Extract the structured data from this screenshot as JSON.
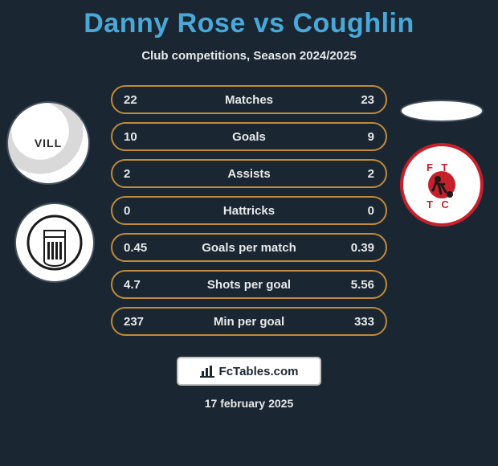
{
  "title": {
    "p1": "Danny Rose",
    "vs": "vs",
    "p2": "Coughlin",
    "color": "#4aa8d8",
    "fontsize": 34
  },
  "subtitle": "Club competitions, Season 2024/2025",
  "row_style": {
    "border_color": "#c08a3a",
    "text_color": "#e8e8e8",
    "radius": 18
  },
  "rows": [
    {
      "label": "Matches",
      "left": "22",
      "right": "23"
    },
    {
      "label": "Goals",
      "left": "10",
      "right": "9"
    },
    {
      "label": "Assists",
      "left": "2",
      "right": "2"
    },
    {
      "label": "Hattricks",
      "left": "0",
      "right": "0"
    },
    {
      "label": "Goals per match",
      "left": "0.45",
      "right": "0.39"
    },
    {
      "label": "Shots per goal",
      "left": "4.7",
      "right": "5.56"
    },
    {
      "label": "Min per goal",
      "left": "237",
      "right": "333"
    }
  ],
  "brand": "FcTables.com",
  "date": "17 february 2025",
  "avatars": {
    "p1_text": "VILL",
    "p2_club_letters": {
      "top": "F T",
      "bottom": "T C"
    }
  },
  "colors": {
    "bg": "#1a2733",
    "p2_ring": "#c8202a"
  }
}
